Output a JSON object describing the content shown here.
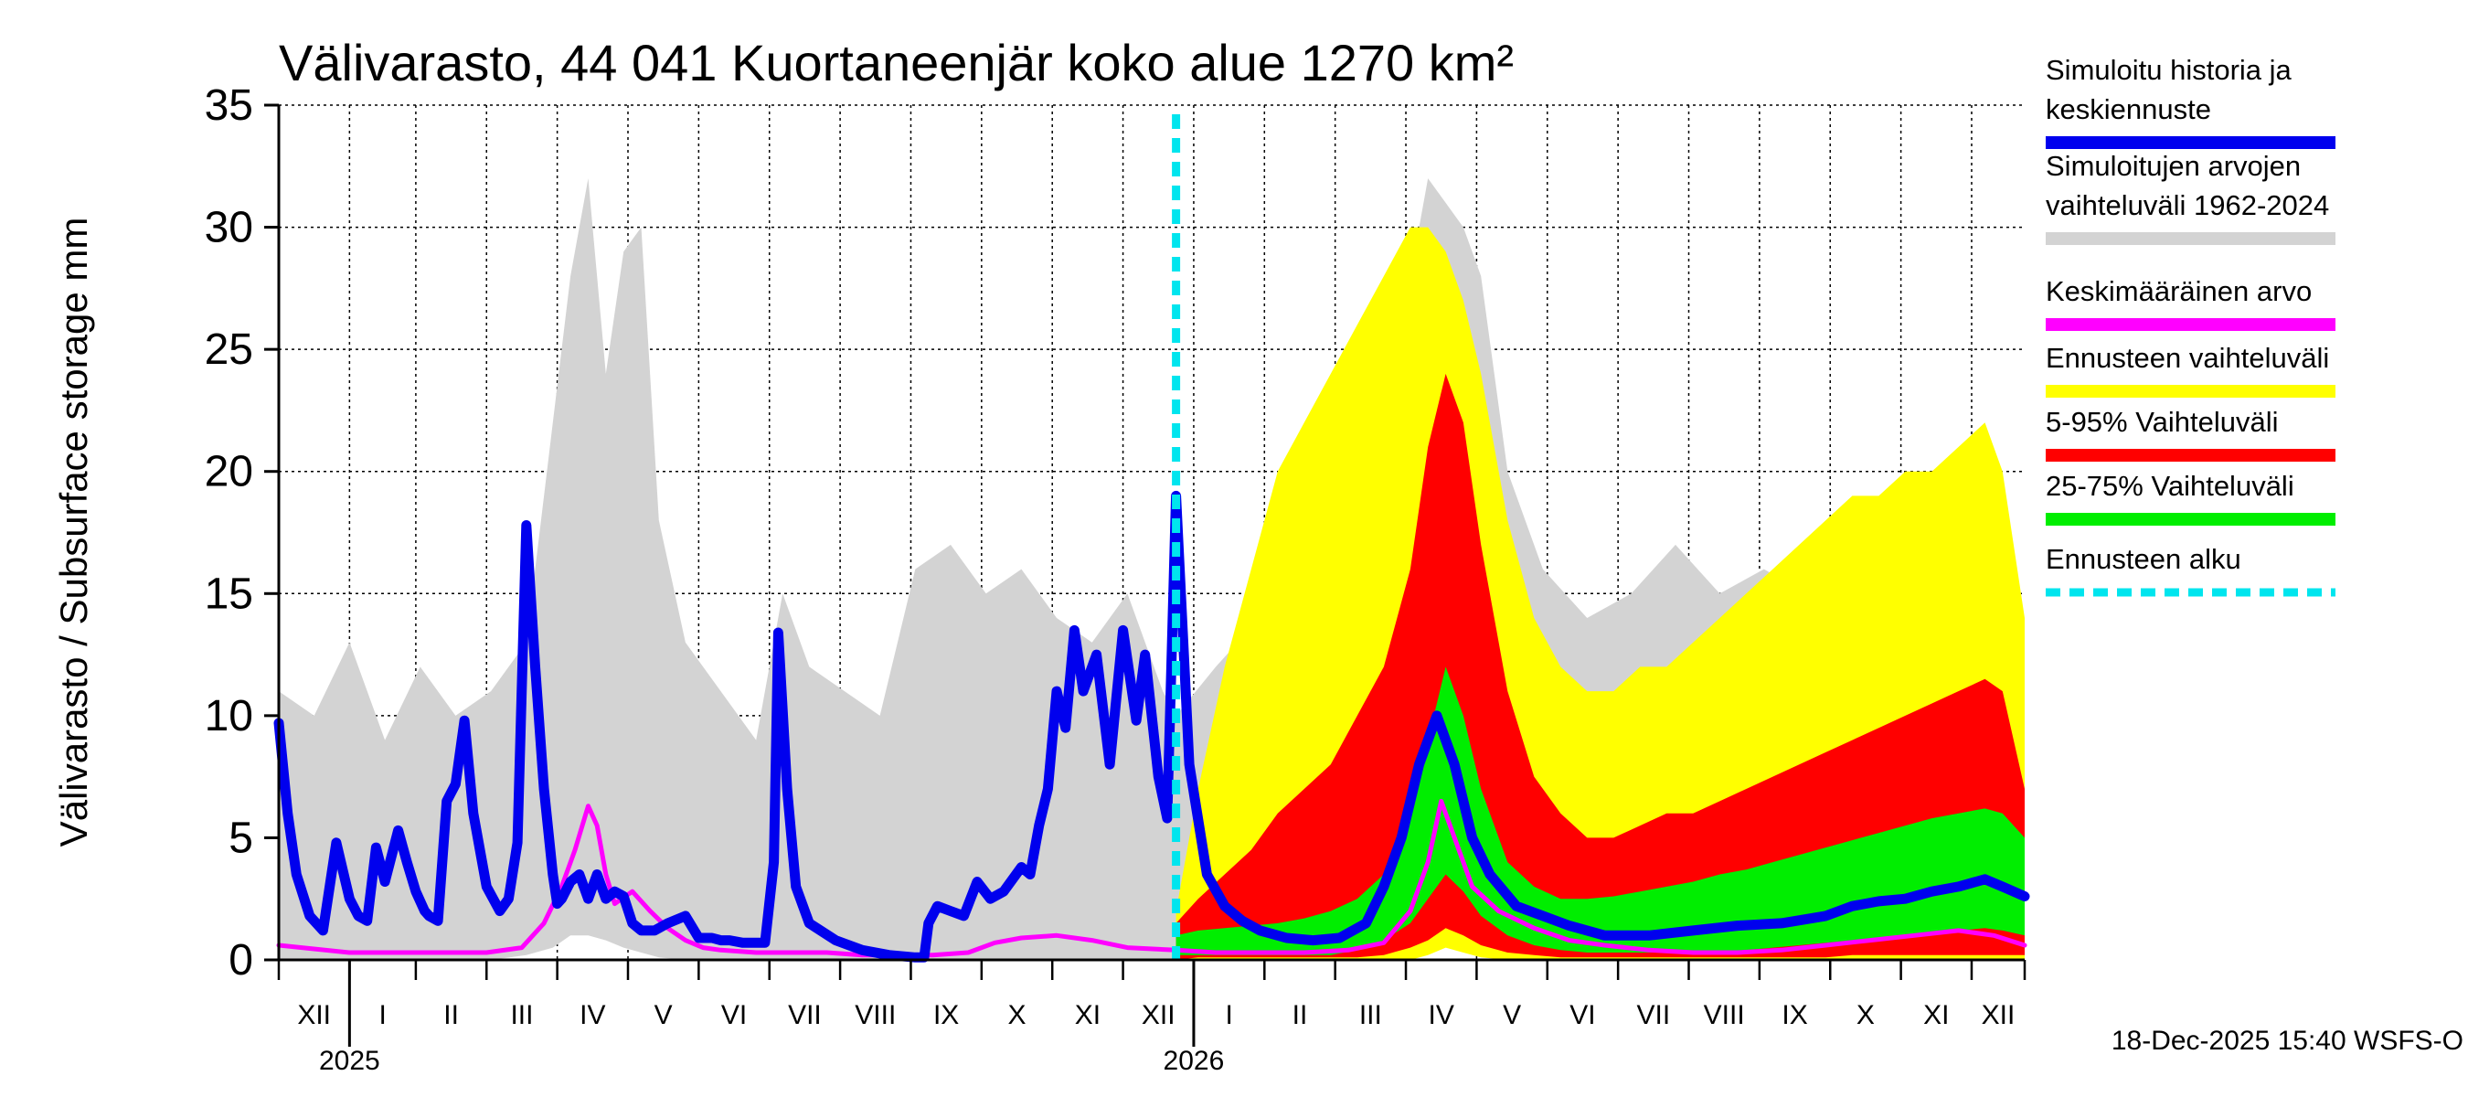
{
  "chart_data": {
    "type": "area",
    "title": "Välivarasto, 44 041 Kuortaneenjär koko alue 1270 km²",
    "ylabel": "Välivarasto / Subsurface storage  mm",
    "xlabel": "",
    "ylim": [
      0,
      35
    ],
    "yticks": [
      0,
      5,
      10,
      15,
      20,
      25,
      30,
      35
    ],
    "x_range_days": [
      0,
      395
    ],
    "forecast_start_day": 203,
    "months": [
      {
        "label": "XII",
        "start": 0,
        "end": 16
      },
      {
        "label": "I",
        "start": 16,
        "end": 31
      },
      {
        "label": "II",
        "start": 31,
        "end": 47
      },
      {
        "label": "III",
        "start": 47,
        "end": 63
      },
      {
        "label": "IV",
        "start": 63,
        "end": 79
      },
      {
        "label": "V",
        "start": 79,
        "end": 95
      },
      {
        "label": "VI",
        "start": 95,
        "end": 111
      },
      {
        "label": "VII",
        "start": 111,
        "end": 127
      },
      {
        "label": "VIII",
        "start": 127,
        "end": 143
      },
      {
        "label": "IX",
        "start": 143,
        "end": 159
      },
      {
        "label": "X",
        "start": 159,
        "end": 175
      },
      {
        "label": "XI",
        "start": 175,
        "end": 191
      },
      {
        "label": "XII",
        "start": 191,
        "end": 207
      },
      {
        "label": "I",
        "start": 207,
        "end": 223
      },
      {
        "label": "II",
        "start": 223,
        "end": 239
      },
      {
        "label": "III",
        "start": 239,
        "end": 255
      },
      {
        "label": "IV",
        "start": 255,
        "end": 271
      },
      {
        "label": "V",
        "start": 271,
        "end": 287
      },
      {
        "label": "VI",
        "start": 287,
        "end": 303
      },
      {
        "label": "VII",
        "start": 303,
        "end": 319
      },
      {
        "label": "VIII",
        "start": 319,
        "end": 335
      },
      {
        "label": "IX",
        "start": 335,
        "end": 351
      },
      {
        "label": "X",
        "start": 351,
        "end": 367
      },
      {
        "label": "XI",
        "start": 367,
        "end": 383
      },
      {
        "label": "XII",
        "start": 383,
        "end": 395
      }
    ],
    "year_labels": [
      {
        "label": "2025",
        "day": 16
      },
      {
        "label": "2026",
        "day": 207
      }
    ],
    "series": [
      {
        "name": "Simuloitujen arvojen vaihteluväli 1962-2024",
        "type": "band",
        "color": "#d3d3d3",
        "x": [
          0,
          8,
          16,
          24,
          32,
          40,
          48,
          56,
          62,
          66,
          70,
          74,
          78,
          82,
          86,
          92,
          100,
          108,
          114,
          120,
          128,
          136,
          144,
          152,
          160,
          168,
          176,
          184,
          192,
          200,
          203,
          212,
          222,
          232,
          242,
          250,
          256,
          260,
          264,
          268,
          272,
          278,
          286,
          296,
          306,
          316,
          326,
          336,
          346,
          356,
          366,
          376,
          386,
          395
        ],
        "low": [
          0,
          0,
          0,
          0,
          0,
          0,
          0,
          0.2,
          0.5,
          1,
          1,
          0.8,
          0.5,
          0.3,
          0.1,
          0,
          0,
          0,
          0,
          0,
          0,
          0,
          0,
          0,
          0,
          0,
          0,
          0,
          0,
          0,
          0,
          0,
          0,
          0,
          0,
          0,
          0.3,
          0.6,
          0.8,
          0.6,
          0.3,
          0.1,
          0,
          0,
          0,
          0,
          0,
          0,
          0,
          0,
          0,
          0,
          0,
          0
        ],
        "high": [
          11,
          10,
          13,
          9,
          12,
          10,
          11,
          13,
          22,
          28,
          32,
          24,
          29,
          30,
          18,
          13,
          11,
          9,
          15,
          12,
          11,
          10,
          16,
          17,
          15,
          16,
          14,
          13,
          15,
          11,
          10,
          12,
          14,
          15,
          19,
          24,
          28,
          32,
          31,
          30,
          28,
          20,
          16,
          14,
          15,
          17,
          15,
          16,
          15,
          17,
          16,
          15,
          14,
          12
        ]
      },
      {
        "name": "Ennusteen vaihteluväli",
        "type": "band",
        "color": "#ffff00",
        "x": [
          203,
          208,
          214,
          220,
          226,
          232,
          238,
          244,
          250,
          256,
          260,
          264,
          268,
          272,
          278,
          284,
          290,
          296,
          302,
          308,
          314,
          320,
          326,
          332,
          338,
          344,
          350,
          356,
          362,
          368,
          374,
          380,
          386,
          390,
          395
        ],
        "low": [
          0,
          0,
          0,
          0,
          0,
          0,
          0,
          0,
          0,
          0,
          0.2,
          0.5,
          0.3,
          0.1,
          0,
          0,
          0,
          0,
          0,
          0,
          0,
          0,
          0,
          0,
          0,
          0,
          0,
          0,
          0,
          0,
          0,
          0,
          0,
          0,
          0
        ],
        "high": [
          2,
          7,
          12,
          16,
          20,
          22,
          24,
          26,
          28,
          30,
          30,
          29,
          27,
          24,
          18,
          14,
          12,
          11,
          11,
          12,
          12,
          13,
          14,
          15,
          16,
          17,
          18,
          19,
          19,
          20,
          20,
          21,
          22,
          20,
          14
        ]
      },
      {
        "name": "5-95% Vaihteluväli",
        "type": "band",
        "color": "#ff0000",
        "x": [
          203,
          208,
          214,
          220,
          226,
          232,
          238,
          244,
          250,
          256,
          260,
          264,
          268,
          272,
          278,
          284,
          290,
          296,
          302,
          308,
          314,
          320,
          326,
          332,
          338,
          344,
          350,
          356,
          362,
          368,
          374,
          380,
          386,
          390,
          395
        ],
        "low": [
          0,
          0.1,
          0.1,
          0.1,
          0.1,
          0.1,
          0.1,
          0.1,
          0.2,
          0.5,
          0.8,
          1.3,
          1.0,
          0.6,
          0.3,
          0.2,
          0.1,
          0.1,
          0.1,
          0.1,
          0.1,
          0.1,
          0.1,
          0.1,
          0.1,
          0.1,
          0.1,
          0.2,
          0.2,
          0.2,
          0.2,
          0.2,
          0.2,
          0.2,
          0.2
        ],
        "high": [
          1.5,
          2.5,
          3.5,
          4.5,
          6,
          7,
          8,
          10,
          12,
          16,
          21,
          24,
          22,
          17,
          11,
          7.5,
          6,
          5,
          5,
          5.5,
          6,
          6,
          6.5,
          7,
          7.5,
          8,
          8.5,
          9,
          9.5,
          10,
          10.5,
          11,
          11.5,
          11,
          7
        ]
      },
      {
        "name": "25-75% Vaihteluväli",
        "type": "band",
        "color": "#00ee00",
        "x": [
          203,
          208,
          214,
          220,
          226,
          232,
          238,
          244,
          250,
          256,
          260,
          264,
          268,
          272,
          278,
          284,
          290,
          296,
          302,
          308,
          314,
          320,
          326,
          332,
          338,
          344,
          350,
          356,
          362,
          368,
          374,
          380,
          386,
          390,
          395
        ],
        "low": [
          0.2,
          0.2,
          0.2,
          0.2,
          0.2,
          0.2,
          0.2,
          0.4,
          0.8,
          1.5,
          2.5,
          3.5,
          2.8,
          1.8,
          1.0,
          0.6,
          0.4,
          0.3,
          0.3,
          0.3,
          0.3,
          0.3,
          0.3,
          0.4,
          0.5,
          0.6,
          0.7,
          0.8,
          0.9,
          1.0,
          1.1,
          1.2,
          1.3,
          1.2,
          1.0
        ],
        "high": [
          1.0,
          1.2,
          1.3,
          1.4,
          1.5,
          1.7,
          2.0,
          2.5,
          3.5,
          6,
          9,
          12,
          10,
          7,
          4,
          3,
          2.5,
          2.5,
          2.6,
          2.8,
          3,
          3.2,
          3.5,
          3.7,
          4,
          4.3,
          4.6,
          4.9,
          5.2,
          5.5,
          5.8,
          6.0,
          6.2,
          6.0,
          5.0
        ]
      },
      {
        "name": "Keskimääräinen arvo",
        "type": "line",
        "color": "#ff00ff",
        "width": 5,
        "x": [
          0,
          16,
          31,
          47,
          55,
          60,
          64,
          67,
          70,
          72,
          74,
          76,
          80,
          84,
          88,
          92,
          96,
          100,
          108,
          116,
          124,
          132,
          140,
          148,
          156,
          162,
          168,
          176,
          184,
          192,
          203,
          212,
          222,
          232,
          242,
          250,
          256,
          260,
          263,
          266,
          270,
          276,
          284,
          292,
          300,
          310,
          320,
          330,
          340,
          350,
          360,
          370,
          380,
          388,
          395
        ],
        "y": [
          0.6,
          0.3,
          0.3,
          0.3,
          0.5,
          1.5,
          3,
          4.5,
          6.3,
          5.5,
          3.5,
          2.3,
          2.8,
          2.0,
          1.3,
          0.8,
          0.5,
          0.4,
          0.3,
          0.3,
          0.3,
          0.2,
          0.2,
          0.2,
          0.3,
          0.7,
          0.9,
          1.0,
          0.8,
          0.5,
          0.4,
          0.3,
          0.3,
          0.3,
          0.4,
          0.7,
          2.0,
          4,
          6.5,
          5,
          3,
          2,
          1.3,
          0.8,
          0.6,
          0.4,
          0.3,
          0.3,
          0.4,
          0.6,
          0.8,
          1.0,
          1.2,
          1.0,
          0.6
        ]
      },
      {
        "name": "Simuloitu historia ja keskiennuste",
        "type": "line",
        "color": "#0000ee",
        "width": 11,
        "x": [
          0,
          2,
          4,
          7,
          10,
          13,
          16,
          18,
          20,
          22,
          24,
          27,
          29,
          31,
          33,
          34,
          36,
          38,
          40,
          42,
          44,
          47,
          50,
          52,
          54,
          56,
          58,
          60,
          62,
          63,
          64,
          66,
          68,
          70,
          72,
          74,
          76,
          78,
          80,
          82,
          85,
          88,
          92,
          95,
          98,
          100,
          102,
          105,
          110,
          112,
          113,
          115,
          117,
          120,
          126,
          132,
          138,
          144,
          146,
          147,
          149,
          152,
          155,
          158,
          161,
          164,
          168,
          170,
          172,
          174,
          176,
          178,
          180,
          182,
          185,
          188,
          191,
          194,
          196,
          199,
          201,
          203,
          206,
          210,
          214,
          218,
          222,
          228,
          234,
          240,
          246,
          250,
          254,
          258,
          262,
          266,
          270,
          274,
          280,
          286,
          292,
          300,
          310,
          320,
          330,
          340,
          350,
          356,
          362,
          368,
          374,
          380,
          386,
          390,
          395
        ],
        "y": [
          9.7,
          6,
          3.5,
          1.8,
          1.2,
          4.8,
          2.5,
          1.8,
          1.6,
          4.6,
          3.2,
          5.3,
          4.0,
          2.8,
          2.0,
          1.8,
          1.6,
          6.5,
          7.2,
          9.8,
          6,
          3,
          2,
          2.5,
          4.8,
          17.8,
          12,
          7,
          3.5,
          2.3,
          2.5,
          3.2,
          3.5,
          2.5,
          3.5,
          2.5,
          2.8,
          2.6,
          1.5,
          1.2,
          1.2,
          1.5,
          1.8,
          0.9,
          0.9,
          0.8,
          0.8,
          0.7,
          0.7,
          4,
          13.4,
          7,
          3,
          1.5,
          0.8,
          0.4,
          0.2,
          0.1,
          0.1,
          1.5,
          2.2,
          2.0,
          1.8,
          3.2,
          2.5,
          2.8,
          3.8,
          3.5,
          5.5,
          7,
          11,
          9.5,
          13.5,
          11,
          12.5,
          8,
          13.5,
          9.8,
          12.5,
          7.5,
          5.8,
          19,
          8,
          3.5,
          2.2,
          1.6,
          1.2,
          0.9,
          0.8,
          0.9,
          1.5,
          3,
          5,
          8,
          10,
          8,
          5,
          3.5,
          2.2,
          1.8,
          1.4,
          1.0,
          1.0,
          1.2,
          1.4,
          1.5,
          1.8,
          2.2,
          2.4,
          2.5,
          2.8,
          3.0,
          3.3,
          3.0,
          2.6
        ]
      }
    ],
    "legend": [
      {
        "lines": [
          "Simuloitu historia ja",
          "keskiennuste"
        ],
        "color": "#0000ee",
        "style": "solid"
      },
      {
        "lines": [
          "Simuloitujen arvojen",
          "vaihteluväli 1962-2024"
        ],
        "color": "#d3d3d3",
        "style": "solid"
      },
      {
        "lines": [
          "Keskimääräinen arvo"
        ],
        "color": "#ff00ff",
        "style": "solid"
      },
      {
        "lines": [
          "Ennusteen vaihteluväli"
        ],
        "color": "#ffff00",
        "style": "solid"
      },
      {
        "lines": [
          "5-95% Vaihteluväli"
        ],
        "color": "#ff0000",
        "style": "solid"
      },
      {
        "lines": [
          "25-75% Vaihteluväli"
        ],
        "color": "#00ee00",
        "style": "solid"
      },
      {
        "lines": [
          "Ennusteen alku"
        ],
        "color": "#00e5ee",
        "style": "dashed"
      }
    ],
    "footer": "18-Dec-2025 15:40 WSFS-O"
  }
}
